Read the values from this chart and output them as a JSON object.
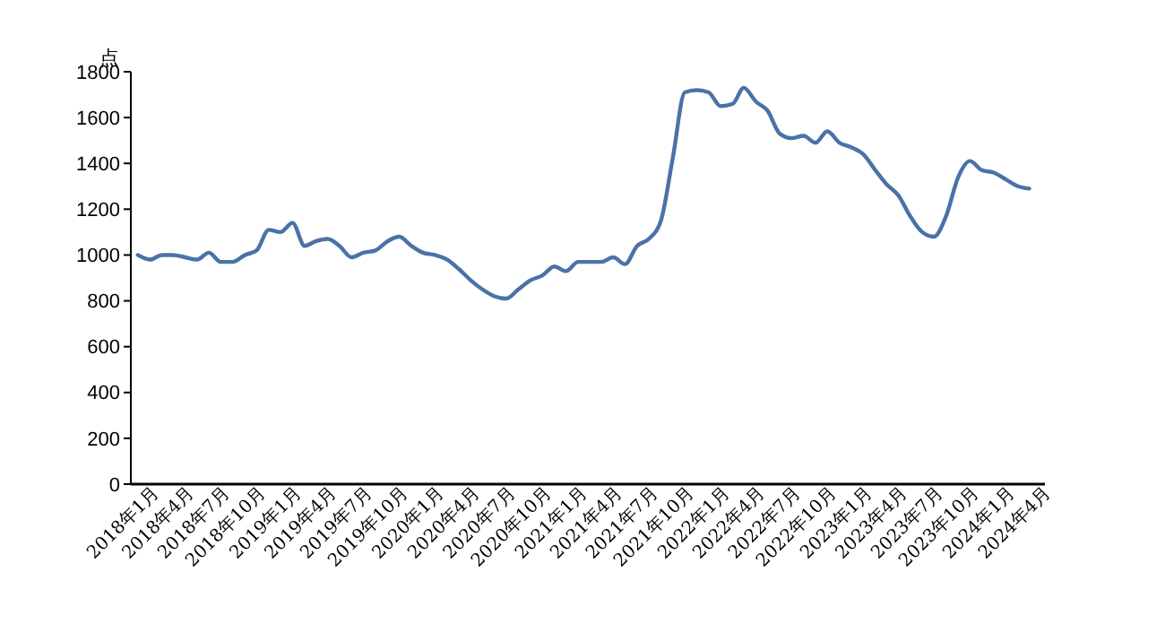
{
  "chart_data": {
    "type": "line",
    "ylabel": "点",
    "x": [
      "2017-12",
      "2018-01",
      "2018-02",
      "2018-03",
      "2018-04",
      "2018-05",
      "2018-06",
      "2018-07",
      "2018-08",
      "2018-09",
      "2018-10",
      "2018-11",
      "2018-12",
      "2019-01",
      "2019-02",
      "2019-03",
      "2019-04",
      "2019-05",
      "2019-06",
      "2019-07",
      "2019-08",
      "2019-09",
      "2019-10",
      "2019-11",
      "2019-12",
      "2020-01",
      "2020-02",
      "2020-03",
      "2020-04",
      "2020-05",
      "2020-06",
      "2020-07",
      "2020-08",
      "2020-09",
      "2020-10",
      "2020-11",
      "2020-12",
      "2021-01",
      "2021-02",
      "2021-03",
      "2021-04",
      "2021-05",
      "2021-06",
      "2021-07",
      "2021-08",
      "2021-09",
      "2021-10",
      "2021-11",
      "2021-12",
      "2022-01",
      "2022-02",
      "2022-03",
      "2022-04",
      "2022-05",
      "2022-06",
      "2022-07",
      "2022-08",
      "2022-09",
      "2022-10",
      "2022-11",
      "2022-12",
      "2023-01",
      "2023-02",
      "2023-03",
      "2023-04",
      "2023-05",
      "2023-06",
      "2023-07",
      "2023-08",
      "2023-09",
      "2023-10",
      "2023-11",
      "2023-12",
      "2024-01",
      "2024-02",
      "2024-03"
    ],
    "series": [
      {
        "color": "#4a72a8",
        "values": [
          1000,
          980,
          1000,
          1000,
          990,
          980,
          1010,
          970,
          970,
          1000,
          1020,
          1110,
          1100,
          1140,
          1040,
          1060,
          1070,
          1040,
          990,
          1010,
          1020,
          1060,
          1080,
          1040,
          1010,
          1000,
          980,
          940,
          890,
          850,
          820,
          810,
          850,
          890,
          910,
          950,
          930,
          970,
          970,
          970,
          990,
          960,
          1040,
          1070,
          1150,
          1430,
          1710,
          1720,
          1710,
          1650,
          1660,
          1730,
          1670,
          1630,
          1530,
          1510,
          1520,
          1490,
          1540,
          1490,
          1470,
          1440,
          1370,
          1310,
          1260,
          1170,
          1100,
          1080,
          1170,
          1340,
          1410,
          1370,
          1360,
          1330,
          1300,
          1290
        ]
      }
    ],
    "xlim": [
      "2017-11-13",
      "2024-04-10"
    ],
    "xticks": [
      {
        "value": "2018-01",
        "label": "2018年1月"
      },
      {
        "value": "2018-04",
        "label": "2018年4月"
      },
      {
        "value": "2018-07",
        "label": "2018年7月"
      },
      {
        "value": "2018-10",
        "label": "2018年10月"
      },
      {
        "value": "2019-01",
        "label": "2019年1月"
      },
      {
        "value": "2019-04",
        "label": "2019年4月"
      },
      {
        "value": "2019-07",
        "label": "2019年7月"
      },
      {
        "value": "2019-10",
        "label": "2019年10月"
      },
      {
        "value": "2020-01",
        "label": "2020年1月"
      },
      {
        "value": "2020-04",
        "label": "2020年4月"
      },
      {
        "value": "2020-07",
        "label": "2020年7月"
      },
      {
        "value": "2020-10",
        "label": "2020年10月"
      },
      {
        "value": "2021-01",
        "label": "2021年1月"
      },
      {
        "value": "2021-04",
        "label": "2021年4月"
      },
      {
        "value": "2021-07",
        "label": "2021年7月"
      },
      {
        "value": "2021-10",
        "label": "2021年10月"
      },
      {
        "value": "2022-01",
        "label": "2022年1月"
      },
      {
        "value": "2022-04",
        "label": "2022年4月"
      },
      {
        "value": "2022-07",
        "label": "2022年7月"
      },
      {
        "value": "2022-10",
        "label": "2022年10月"
      },
      {
        "value": "2023-01",
        "label": "2023年1月"
      },
      {
        "value": "2023-04",
        "label": "2023年4月"
      },
      {
        "value": "2023-07",
        "label": "2023年7月"
      },
      {
        "value": "2023-10",
        "label": "2023年10月"
      },
      {
        "value": "2024-01",
        "label": "2024年1月"
      },
      {
        "value": "2024-04",
        "label": "2024年4月"
      }
    ],
    "ylim": [
      0,
      1800
    ],
    "yticks": [
      0,
      200,
      400,
      600,
      800,
      1000,
      1200,
      1400,
      1600,
      1800
    ],
    "grid": false,
    "marker": "none",
    "line_style": "solid"
  }
}
